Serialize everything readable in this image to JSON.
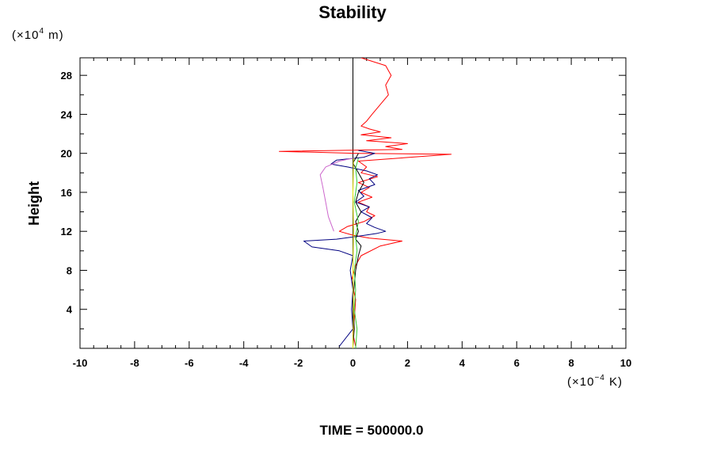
{
  "chart_data": {
    "type": "line",
    "title": "Stability",
    "ylabel": "Height",
    "y_unit_prefix": "(×10",
    "y_unit_exp": "4",
    "y_unit_suffix": " m)",
    "x_unit_prefix": "(×10",
    "x_unit_exp": "−4",
    "x_unit_suffix": " K)",
    "xlim": [
      -10,
      10
    ],
    "ylim": [
      0,
      29.8
    ],
    "xticks": [
      -10,
      -8,
      -6,
      -4,
      -2,
      0,
      2,
      4,
      6,
      8,
      10
    ],
    "xtick_labels": [
      "-10",
      "-8",
      "-6",
      "-4",
      "-2",
      "0",
      "2",
      "4",
      "6",
      "8",
      "10"
    ],
    "yticks": [
      4,
      8,
      12,
      16,
      20,
      24,
      28
    ],
    "ytick_labels": [
      "4",
      "8",
      "12",
      "16",
      "20",
      "24",
      "28"
    ],
    "zero_line_x": 0,
    "footer": "TIME = 500000.0",
    "series": [
      {
        "name": "red",
        "color": "#ff0000",
        "points": [
          [
            0.1,
            0.2
          ],
          [
            0.0,
            1.5
          ],
          [
            0.05,
            3
          ],
          [
            0.1,
            5
          ],
          [
            -0.05,
            7
          ],
          [
            0.1,
            8.5
          ],
          [
            0.3,
            9.5
          ],
          [
            1.0,
            10.5
          ],
          [
            1.8,
            11.0
          ],
          [
            0.6,
            11.3
          ],
          [
            0.0,
            11.6
          ],
          [
            -0.5,
            12.0
          ],
          [
            -0.2,
            12.5
          ],
          [
            0.4,
            13.0
          ],
          [
            0.8,
            13.6
          ],
          [
            0.5,
            14.0
          ],
          [
            0.6,
            14.5
          ],
          [
            0.2,
            15.0
          ],
          [
            0.7,
            15.5
          ],
          [
            0.3,
            16.0
          ],
          [
            0.6,
            16.5
          ],
          [
            0.2,
            17.0
          ],
          [
            0.9,
            17.6
          ],
          [
            0.3,
            18.0
          ],
          [
            0.5,
            18.6
          ],
          [
            0.2,
            19.2
          ],
          [
            3.6,
            19.9
          ],
          [
            0.2,
            20.0
          ],
          [
            -2.7,
            20.2
          ],
          [
            1.8,
            20.4
          ],
          [
            1.2,
            20.7
          ],
          [
            2.0,
            21.0
          ],
          [
            0.5,
            21.3
          ],
          [
            1.4,
            21.6
          ],
          [
            0.3,
            21.9
          ],
          [
            1.0,
            22.2
          ],
          [
            0.6,
            22.5
          ],
          [
            0.3,
            22.8
          ],
          [
            0.5,
            23.3
          ],
          [
            0.7,
            24.0
          ],
          [
            1.0,
            25.0
          ],
          [
            1.3,
            26.0
          ],
          [
            1.2,
            27.0
          ],
          [
            1.4,
            28.0
          ],
          [
            1.2,
            29.0
          ],
          [
            0.3,
            29.8
          ]
        ]
      },
      {
        "name": "navy",
        "color": "#000080",
        "points": [
          [
            -0.5,
            0.2
          ],
          [
            0.0,
            2
          ],
          [
            -0.05,
            4
          ],
          [
            0.0,
            6
          ],
          [
            -0.1,
            8
          ],
          [
            0.0,
            9.5
          ],
          [
            -0.5,
            10.0
          ],
          [
            -1.5,
            10.4
          ],
          [
            -1.8,
            11.0
          ],
          [
            -0.6,
            11.2
          ],
          [
            0.2,
            11.5
          ],
          [
            0.9,
            11.8
          ],
          [
            1.2,
            12.0
          ],
          [
            0.8,
            12.4
          ],
          [
            0.5,
            12.8
          ],
          [
            0.7,
            13.4
          ],
          [
            0.3,
            14.0
          ],
          [
            0.6,
            14.5
          ],
          [
            0.1,
            15.0
          ],
          [
            0.4,
            15.6
          ],
          [
            0.2,
            16.2
          ],
          [
            0.8,
            16.8
          ],
          [
            0.6,
            17.4
          ],
          [
            0.9,
            17.8
          ],
          [
            0.5,
            18.2
          ],
          [
            -0.2,
            18.6
          ],
          [
            -0.8,
            18.9
          ],
          [
            -0.6,
            19.3
          ],
          [
            0.4,
            19.6
          ],
          [
            0.8,
            20.0
          ],
          [
            0.2,
            20.3
          ]
        ]
      },
      {
        "name": "black",
        "color": "#000000",
        "points": [
          [
            0.0,
            0.2
          ],
          [
            0.05,
            2
          ],
          [
            0.0,
            5
          ],
          [
            0.1,
            8
          ],
          [
            0.2,
            9.5
          ],
          [
            0.3,
            10.5
          ],
          [
            0.1,
            11.2
          ],
          [
            0.2,
            12.0
          ],
          [
            0.1,
            13.0
          ],
          [
            0.3,
            14.0
          ],
          [
            0.1,
            15.0
          ],
          [
            0.2,
            16.0
          ],
          [
            0.4,
            17.0
          ],
          [
            0.2,
            18.0
          ],
          [
            0.0,
            19.0
          ],
          [
            0.2,
            20.0
          ]
        ]
      },
      {
        "name": "violet",
        "color": "#cc66cc",
        "points": [
          [
            -0.7,
            12.0
          ],
          [
            -0.9,
            13.5
          ],
          [
            -1.0,
            15.0
          ],
          [
            -1.1,
            16.5
          ],
          [
            -1.2,
            17.8
          ],
          [
            -1.0,
            18.6
          ],
          [
            -0.5,
            19.2
          ],
          [
            0.0,
            19.5
          ]
        ]
      },
      {
        "name": "green",
        "color": "#33cc33",
        "points": [
          [
            0.1,
            0.0
          ],
          [
            0.15,
            2
          ],
          [
            0.05,
            4
          ],
          [
            0.1,
            6
          ],
          [
            0.05,
            8
          ],
          [
            0.15,
            10
          ],
          [
            0.1,
            11.5
          ],
          [
            0.2,
            13
          ],
          [
            0.05,
            15
          ],
          [
            0.15,
            17
          ],
          [
            0.1,
            18.5
          ],
          [
            0.2,
            19.5
          ]
        ]
      },
      {
        "name": "yellow",
        "color": "#e6e600",
        "points": [
          [
            0.0,
            0.0
          ],
          [
            0.02,
            4
          ],
          [
            0.0,
            8
          ],
          [
            0.02,
            12
          ],
          [
            0.0,
            16
          ],
          [
            0.02,
            19.5
          ]
        ]
      }
    ]
  }
}
